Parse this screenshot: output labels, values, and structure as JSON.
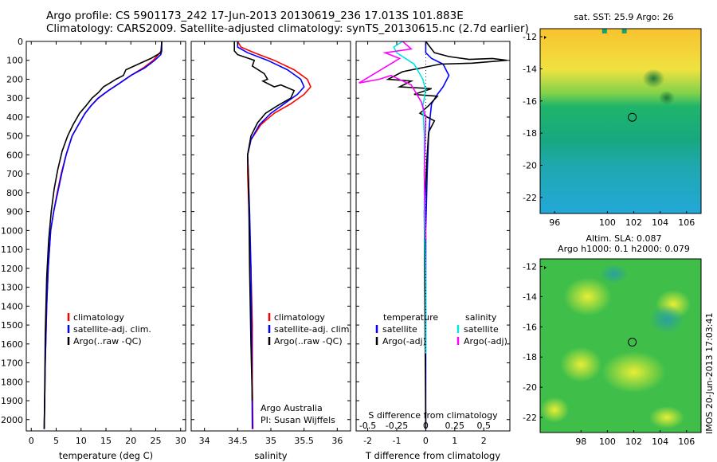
{
  "titles": {
    "line1": "Argo profile: CS 5901173_242 17-Jun-2013 20130619_236 17.013S 101.883E",
    "line2": "Climatology: CARS2009. Satellite-adjusted climatology: synTS_20130615.nc (2.7d earlier)"
  },
  "colors": {
    "climatology": "#ff0000",
    "satellite": "#0000ff",
    "argo": "#000000",
    "sat_salinity": "#00e5e5",
    "argo_salinity": "#ff00ff"
  },
  "chart_data": [
    {
      "type": "line",
      "name": "temperature",
      "xlabel": "temperature (deg C)",
      "ylabel": "",
      "xlim": [
        -1,
        31
      ],
      "ylim": [
        2060,
        0
      ],
      "xticks": [
        0,
        5,
        10,
        15,
        20,
        25,
        30
      ],
      "yticks": [
        0,
        100,
        200,
        300,
        400,
        500,
        600,
        700,
        800,
        900,
        1000,
        1100,
        1200,
        1300,
        1400,
        1500,
        1600,
        1700,
        1800,
        1900,
        2000
      ],
      "legend": [
        "climatology",
        "satellite-adj. clim.",
        "Argo(..raw -QC)"
      ],
      "series": [
        {
          "name": "climatology",
          "color": "#ff0000",
          "x": [
            26.2,
            26.1,
            25.5,
            24.5,
            22.5,
            20,
            17.8,
            15.5,
            13.5,
            12,
            10.8,
            9.5,
            8.2,
            7,
            6,
            5.2,
            4.5,
            3.9,
            3.4,
            3.1,
            2.8,
            2.7,
            2.6
          ],
          "y": [
            0,
            50,
            70,
            100,
            140,
            180,
            220,
            260,
            300,
            340,
            380,
            440,
            500,
            600,
            700,
            800,
            900,
            1000,
            1200,
            1400,
            1700,
            1900,
            2050
          ]
        },
        {
          "name": "satellite",
          "color": "#0000ff",
          "x": [
            26.2,
            26.2,
            26,
            24.8,
            22.8,
            20,
            17.8,
            15.5,
            13.4,
            12,
            10.8,
            9.5,
            8.2,
            7,
            6.1,
            5.3,
            4.5,
            3.9,
            3.4,
            3.1,
            2.8,
            2.7,
            2.6
          ],
          "y": [
            0,
            50,
            70,
            100,
            140,
            180,
            220,
            260,
            300,
            340,
            380,
            440,
            500,
            600,
            700,
            800,
            900,
            1000,
            1200,
            1400,
            1700,
            1900,
            2050
          ]
        },
        {
          "name": "argo",
          "color": "#000000",
          "x": [
            26.2,
            26.1,
            26,
            24,
            21.5,
            19,
            18.5,
            17,
            15.8,
            14.5,
            13.5,
            12.2,
            11,
            9.7,
            8.4,
            7.3,
            6.2,
            5.3,
            4.6,
            4,
            3.5,
            3.1,
            2.8,
            2.7,
            2.6
          ],
          "y": [
            0,
            40,
            60,
            90,
            120,
            150,
            180,
            200,
            220,
            240,
            270,
            300,
            340,
            380,
            440,
            500,
            580,
            680,
            780,
            900,
            1050,
            1250,
            1550,
            1850,
            2050
          ]
        }
      ]
    },
    {
      "type": "line",
      "name": "salinity",
      "xlabel": "salinity",
      "ylabel": "",
      "xlim": [
        33.8,
        36.2
      ],
      "ylim": [
        2060,
        0
      ],
      "xticks": [
        34,
        34.5,
        35,
        35.5,
        36
      ],
      "legend": [
        "climatology",
        "satellite-adj. clim.",
        "Argo(..raw -QC)"
      ],
      "annotation": [
        "Argo Australia",
        "PI: Susan Wijffels"
      ],
      "series": [
        {
          "name": "climatology",
          "color": "#ff0000",
          "x": [
            34.5,
            34.55,
            34.75,
            35.05,
            35.35,
            35.55,
            35.6,
            35.5,
            35.3,
            35.05,
            34.85,
            34.7,
            34.65,
            34.65,
            34.67,
            34.7,
            34.72,
            34.72,
            34.73
          ],
          "y": [
            0,
            30,
            60,
            100,
            150,
            200,
            240,
            280,
            330,
            380,
            440,
            520,
            600,
            700,
            900,
            1200,
            1500,
            1800,
            2050
          ]
        },
        {
          "name": "satellite",
          "color": "#0000ff",
          "x": [
            34.5,
            34.5,
            34.65,
            34.95,
            35.25,
            35.45,
            35.5,
            35.4,
            35.2,
            35,
            34.83,
            34.7,
            34.65,
            34.66,
            34.68,
            34.7,
            34.71,
            34.72
          ],
          "y": [
            0,
            30,
            60,
            100,
            150,
            200,
            240,
            280,
            330,
            380,
            440,
            520,
            600,
            700,
            900,
            1200,
            1500,
            2050
          ]
        },
        {
          "name": "argo",
          "color": "#000000",
          "x": [
            34.45,
            34.45,
            34.5,
            34.75,
            34.72,
            34.9,
            34.95,
            34.88,
            35.05,
            35.15,
            35.35,
            35.3,
            35.1,
            34.92,
            34.8,
            34.7,
            34.65,
            34.66,
            34.67,
            34.68,
            34.7,
            34.72
          ],
          "y": [
            0,
            50,
            70,
            100,
            130,
            170,
            200,
            210,
            240,
            230,
            260,
            300,
            340,
            380,
            430,
            500,
            600,
            700,
            900,
            1200,
            1600,
            1900
          ]
        }
      ]
    },
    {
      "type": "line",
      "name": "difference",
      "xlabel": "T difference from climatology",
      "xlabel_top": "S difference from climatology",
      "xlim": [
        -2.4,
        2.9
      ],
      "ylim": [
        2060,
        0
      ],
      "xticks": [
        -2,
        -1,
        0,
        1,
        2
      ],
      "xticks_top": [
        -0.5,
        -0.25,
        0,
        0.25,
        0.5
      ],
      "legend_temperature": [
        "temperature",
        "satellite",
        "Argo(-adj)"
      ],
      "legend_salinity": [
        "salinity",
        "satellite",
        "Argo(-adj)"
      ],
      "series": [
        {
          "name": "T satellite",
          "color": "#0000ff",
          "x": [
            0,
            0,
            0.2,
            0.6,
            0.8,
            0.6,
            0.4,
            0.2,
            0.15,
            0.1,
            0.05,
            0,
            0
          ],
          "y": [
            0,
            60,
            90,
            120,
            180,
            240,
            280,
            330,
            400,
            500,
            700,
            1000,
            2050
          ]
        },
        {
          "name": "T argo",
          "color": "#000000",
          "x": [
            0,
            0.3,
            0.8,
            1.5,
            2.3,
            2.8,
            1.6,
            0.5,
            -0.8,
            -1.3,
            -0.5,
            -0.9,
            0.2,
            -0.4,
            0.4,
            0.1,
            -0.2,
            0.3,
            0.1,
            0.05,
            -0.05,
            0
          ],
          "y": [
            0,
            60,
            80,
            95,
            90,
            100,
            115,
            120,
            160,
            200,
            210,
            240,
            250,
            280,
            290,
            340,
            380,
            420,
            480,
            600,
            900,
            2050
          ]
        },
        {
          "name": "S satellite",
          "color": "#00e5e5",
          "x": [
            -0.8,
            -1.1,
            -1,
            -0.4,
            -0.1,
            0,
            -0.1,
            -0.05,
            -0.05,
            0,
            0
          ],
          "y": [
            0,
            30,
            60,
            120,
            200,
            260,
            340,
            500,
            900,
            1300,
            1650
          ]
        },
        {
          "name": "S argo",
          "color": "#ff00ff",
          "x": [
            -0.8,
            -0.5,
            -1.4,
            -0.9,
            -2.3,
            -1.6,
            -1.2,
            -0.5,
            -0.15,
            0,
            -0.05,
            0
          ],
          "y": [
            0,
            40,
            60,
            90,
            220,
            200,
            180,
            230,
            320,
            400,
            700,
            1050
          ]
        }
      ]
    }
  ],
  "maps": {
    "sst": {
      "title": "sat. SST: 25.9 Argo: 26",
      "xticks": [
        "96",
        "100",
        "102",
        "104",
        "106"
      ],
      "yticks": [
        "-12",
        "-14",
        "-16",
        "-18",
        "-20",
        "-22"
      ],
      "colorscale": "jet",
      "marker": {
        "lon": 101.883,
        "lat": -17.013
      }
    },
    "sla": {
      "title_line1": "Altim. SLA: 0.087",
      "title_line2": "Argo h1000: 0.1 h2000: 0.079",
      "xticks": [
        "98",
        "100",
        "102",
        "104",
        "106"
      ],
      "yticks": [
        "-12",
        "-14",
        "-16",
        "-18",
        "-20",
        "-22"
      ],
      "colorscale": "jet",
      "marker": {
        "lon": 101.883,
        "lat": -17.013
      }
    }
  },
  "stamp": "IMOS 20-Jun-2013 17:03:41"
}
